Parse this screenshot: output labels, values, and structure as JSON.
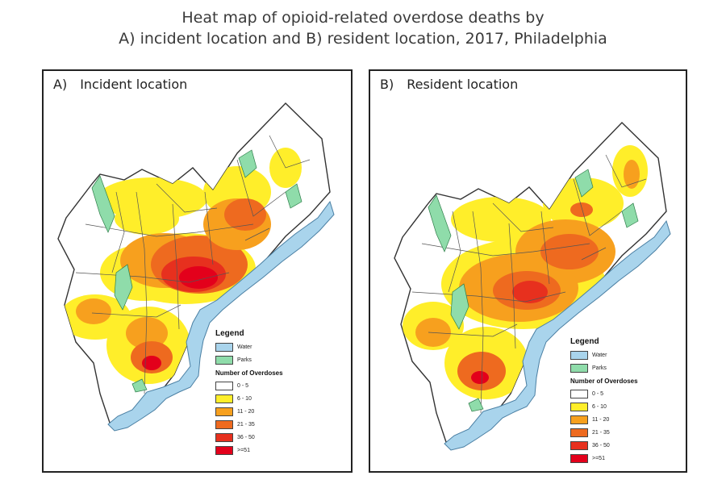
{
  "title": {
    "line1": "Heat map of opioid-related overdose deaths by",
    "line2": "A) incident location and B) resident location, 2017, Philadelphia"
  },
  "panels": [
    {
      "letter": "A)",
      "label": "Incident location"
    },
    {
      "letter": "B)",
      "label": "Resident location"
    }
  ],
  "legend": {
    "title": "Legend",
    "water": "Water",
    "parks": "Parks",
    "subtitle": "Number of Overdoses",
    "classes": [
      "0 - 5",
      "6 - 10",
      "11 - 20",
      "21 - 35",
      "36 - 50",
      ">=51"
    ]
  },
  "colors": {
    "water": "#a9d4ec",
    "parks": "#8fdcaa",
    "class_0": "#ffffff",
    "class_1": "#ffee2a",
    "class_2": "#f7a01e",
    "class_3": "#ee6a1f",
    "class_4": "#e7301e",
    "class_5": "#e3001b"
  }
}
